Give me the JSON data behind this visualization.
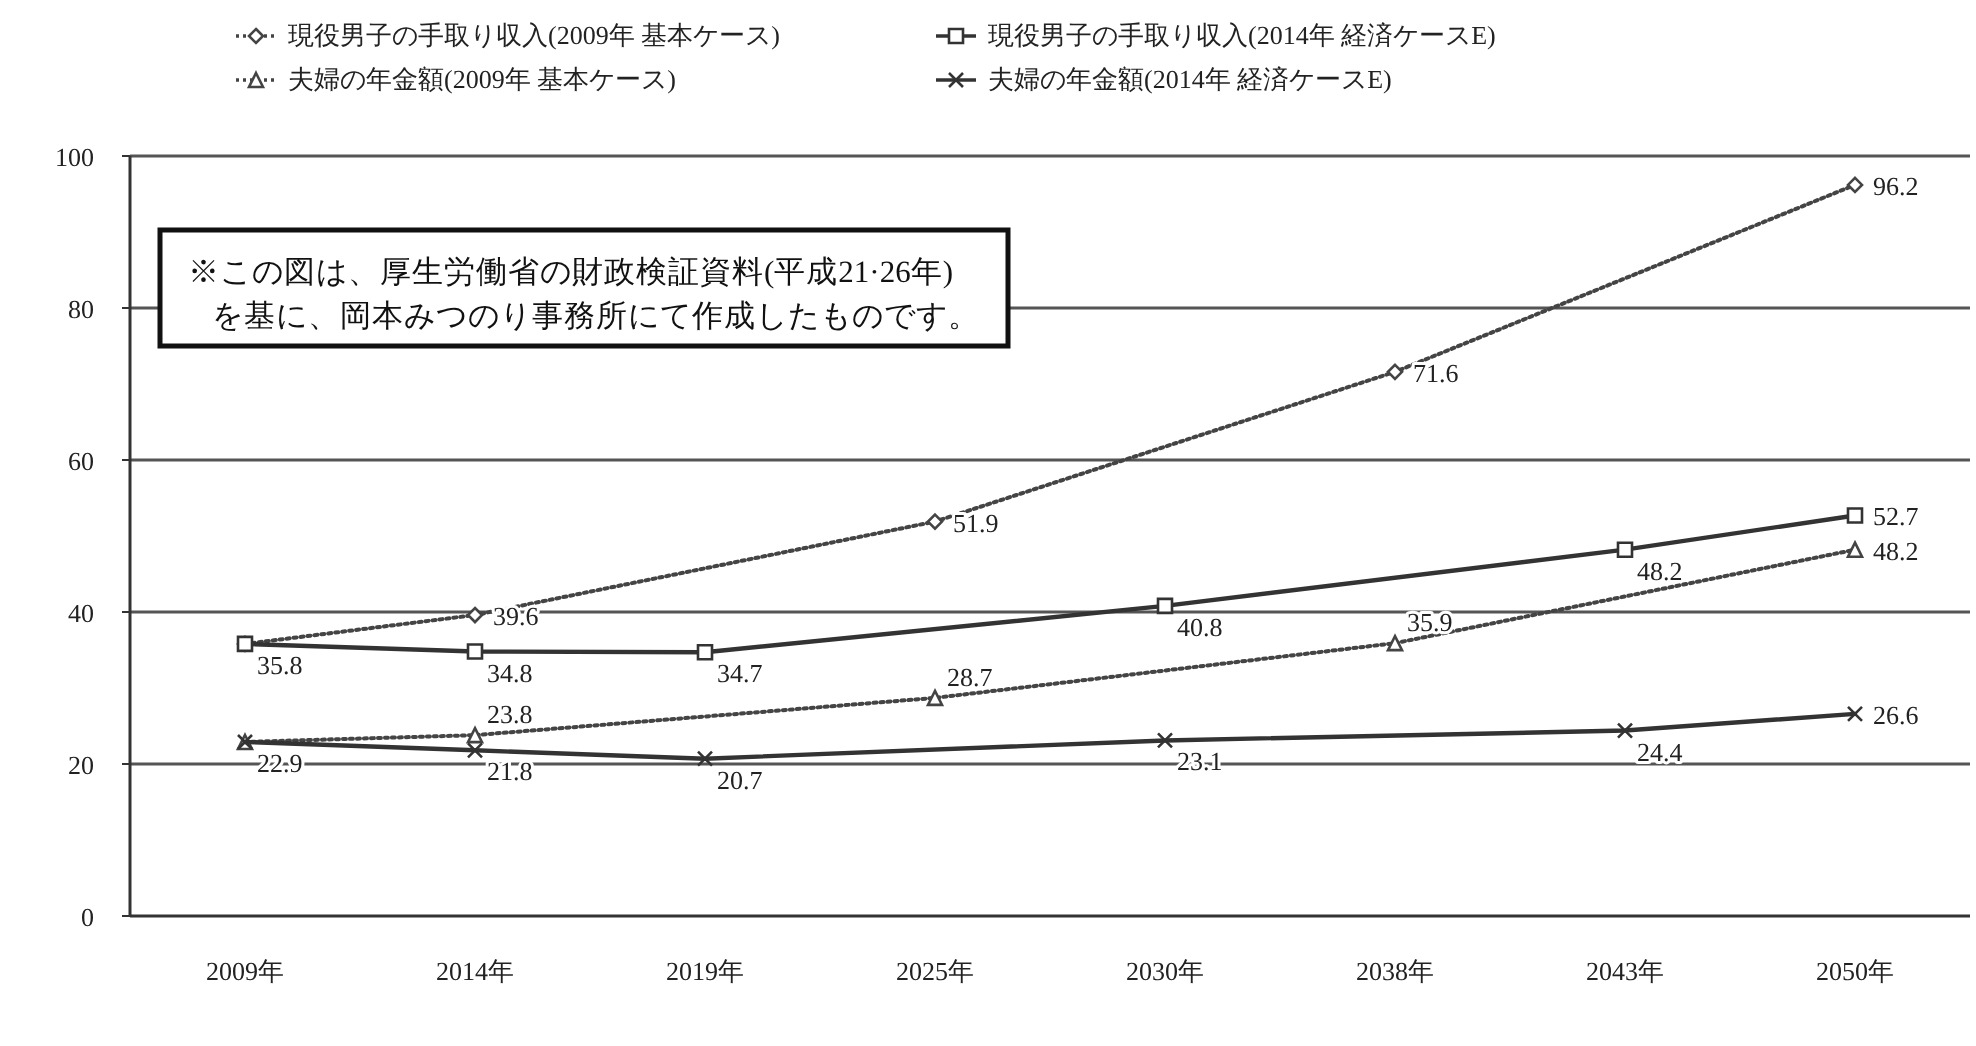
{
  "chart_data": {
    "type": "line",
    "categories": [
      "2009年",
      "2014年",
      "2019年",
      "2025年",
      "2030年",
      "2038年",
      "2043年",
      "2050年"
    ],
    "series": [
      {
        "name": "現役男子の手取り収入(2009年 基本ケース)",
        "color": "#444444",
        "marker": "diamond",
        "line_style": "dotted",
        "values": [
          35.8,
          39.6,
          null,
          51.9,
          null,
          71.6,
          null,
          96.2
        ],
        "value_labels": [
          null,
          "39.6",
          null,
          "51.9",
          null,
          "71.6",
          null,
          "96.2"
        ]
      },
      {
        "name": "現役男子の手取り収入(2014年 経済ケースE)",
        "color": "#333333",
        "marker": "square",
        "line_style": "solid",
        "values": [
          35.8,
          34.8,
          34.7,
          null,
          40.8,
          null,
          48.2,
          52.7
        ],
        "value_labels": [
          "35.8",
          "34.8",
          "34.7",
          null,
          "40.8",
          null,
          "48.2",
          "52.7"
        ]
      },
      {
        "name": "夫婦の年金額(2009年 基本ケース)",
        "color": "#444444",
        "marker": "triangle",
        "line_style": "dotted",
        "values": [
          22.9,
          23.8,
          null,
          28.7,
          null,
          35.9,
          null,
          48.2
        ],
        "value_labels": [
          null,
          "23.8",
          null,
          "28.7",
          null,
          "35.9",
          null,
          "48.2"
        ]
      },
      {
        "name": "夫婦の年金額(2014年 経済ケースE)",
        "color": "#333333",
        "marker": "cross",
        "line_style": "solid",
        "values": [
          22.9,
          21.8,
          20.7,
          null,
          23.1,
          null,
          24.4,
          26.6
        ],
        "value_labels": [
          "22.9",
          "21.8",
          "20.7",
          null,
          "23.1",
          null,
          "24.4",
          "26.6"
        ]
      }
    ],
    "ylim": [
      0,
      100
    ],
    "yticks": [
      0,
      20,
      40,
      60,
      80,
      100
    ],
    "grid": "y",
    "legend": "top",
    "annotations": [
      "※この図は、厚生労働省の財政検証資料(平成21·26年)\nを基に、岡本みつのり事務所にて作成したものです。"
    ]
  }
}
